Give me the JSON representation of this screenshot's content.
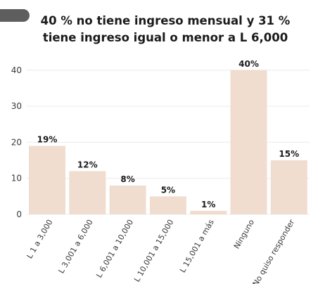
{
  "header": {
    "title_line1": "40 % no tiene ingreso mensual y 31 %",
    "title_line2": "tiene ingreso igual o menor a L 6,000"
  },
  "colors": {
    "bar": "#f0ddd0",
    "grid": "#ececec",
    "axis_text": "#3a3a3a",
    "label_text": "#1b1b1b",
    "pill": "#5e5e5e"
  },
  "chart_data": {
    "type": "bar",
    "title": "40 % no tiene ingreso mensual y 31 % tiene ingreso igual o menor a L 6,000",
    "xlabel": "",
    "ylabel": "",
    "categories": [
      "L 1 a 3,000",
      "L 3,001 a 6,000",
      "L 6,001 a 10,000",
      "L 10,001 a 15,000",
      "L 15,001 a más",
      "Ninguno",
      "No quiso responder"
    ],
    "values": [
      19,
      12,
      8,
      5,
      1,
      40,
      15
    ],
    "data_labels": [
      "19%",
      "12%",
      "8%",
      "5%",
      "1%",
      "40%",
      "15%"
    ],
    "yticks": [
      0,
      10,
      20,
      30,
      40
    ],
    "ylim": [
      0,
      42
    ],
    "grid": true,
    "legend": "none"
  }
}
